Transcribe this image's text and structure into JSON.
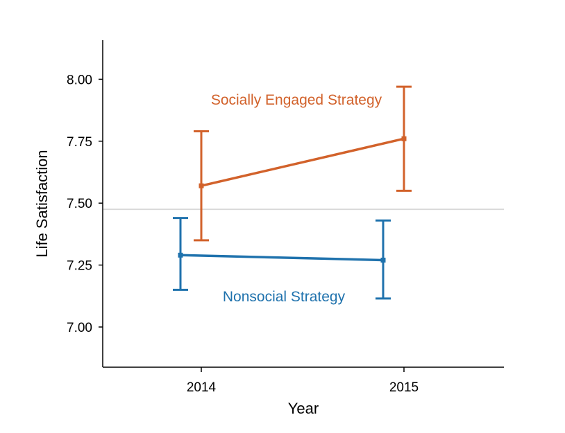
{
  "chart_data": {
    "type": "line",
    "xlabel": "Year",
    "ylabel": "Life Satisfaction",
    "categories": [
      "2014",
      "2015"
    ],
    "ylim": [
      6.84,
      8.16
    ],
    "yticks": [
      "7.00",
      "7.25",
      "7.50",
      "7.75",
      "8.00"
    ],
    "grid": false,
    "reference_line": {
      "y": 7.475,
      "color": "#d9d9d9"
    },
    "series": [
      {
        "name": "Socially Engaged Strategy",
        "color": "#d2622b",
        "values": [
          7.57,
          7.76
        ],
        "error_low": [
          7.35,
          7.55
        ],
        "error_high": [
          7.79,
          7.97
        ]
      },
      {
        "name": "Nonsocial Strategy",
        "color": "#1f72ad",
        "values": [
          7.29,
          7.27
        ],
        "error_low": [
          7.15,
          7.115
        ],
        "error_high": [
          7.44,
          7.43
        ]
      }
    ]
  }
}
